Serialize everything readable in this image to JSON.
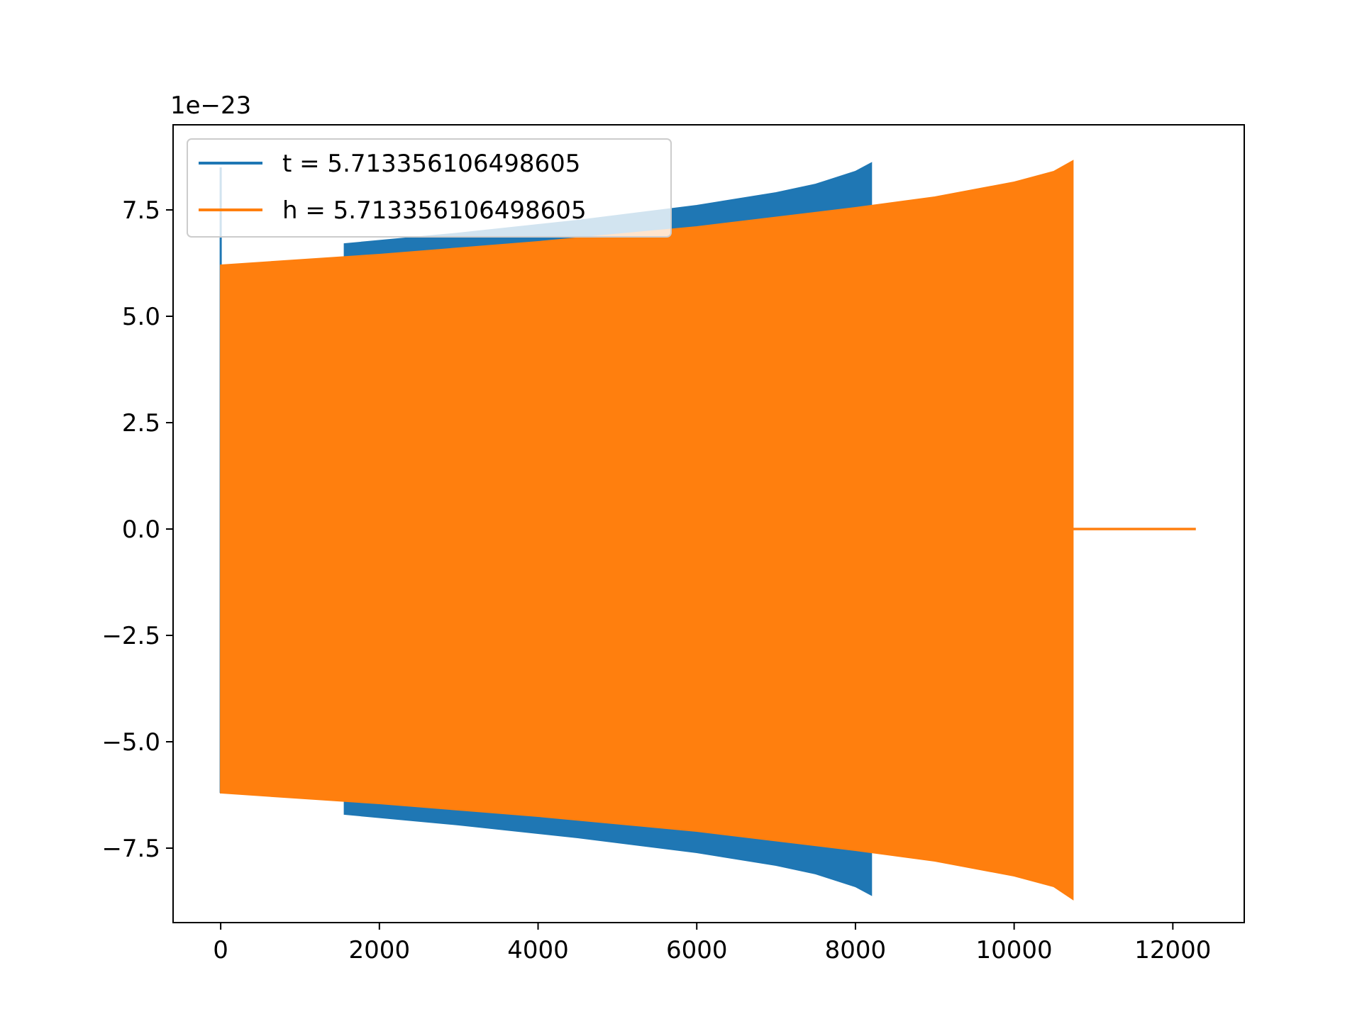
{
  "chart_data": {
    "type": "line",
    "title": "",
    "xlabel": "",
    "ylabel": "",
    "y_offset_label": "1e−23",
    "y_scale": 1e-23,
    "xlim": [
      -600,
      12900
    ],
    "ylim": [
      -9.25e-23,
      9.5e-23
    ],
    "xticks": [
      0,
      2000,
      4000,
      6000,
      8000,
      10000,
      12000
    ],
    "xtick_labels": [
      "0",
      "2000",
      "4000",
      "6000",
      "8000",
      "10000",
      "12000"
    ],
    "yticks": [
      -7.5e-23,
      -5e-23,
      -2.5e-23,
      0.0,
      2.5e-23,
      5e-23,
      7.5e-23
    ],
    "ytick_labels": [
      "−7.5",
      "−5.0",
      "−2.5",
      "0.0",
      "2.5",
      "5.0",
      "7.5"
    ],
    "grid": false,
    "legend_position": "upper-left",
    "series": [
      {
        "name": "t = 5.713356106498605",
        "color": "#1f77b4",
        "envelope": {
          "x": [
            0,
            1560,
            1560,
            3000,
            4500,
            6000,
            7000,
            7500,
            8000,
            8200
          ],
          "upper": [
            6.2e-23,
            6.2e-23,
            6.7e-23,
            6.95e-23,
            7.25e-23,
            7.6e-23,
            7.9e-23,
            8.1e-23,
            8.4e-23,
            8.6e-23
          ],
          "lower": [
            -6.2e-23,
            -6.2e-23,
            -6.7e-23,
            -6.95e-23,
            -7.25e-23,
            -7.6e-23,
            -7.9e-23,
            -8.1e-23,
            -8.4e-23,
            -8.6e-23
          ]
        },
        "spike": {
          "x": 0,
          "max": 8.5e-23,
          "min": -6.2e-23
        }
      },
      {
        "name": "h = 5.713356106498605",
        "color": "#ff7f0e",
        "envelope": {
          "x": [
            0,
            2000,
            4000,
            6000,
            8000,
            9000,
            10000,
            10500,
            10740
          ],
          "upper": [
            6.2e-23,
            6.45e-23,
            6.75e-23,
            7.1e-23,
            7.55e-23,
            7.8e-23,
            8.15e-23,
            8.4e-23,
            8.65e-23
          ],
          "lower": [
            -6.2e-23,
            -6.45e-23,
            -6.75e-23,
            -7.1e-23,
            -7.55e-23,
            -7.8e-23,
            -8.15e-23,
            -8.4e-23,
            -8.7e-23
          ]
        },
        "tail": {
          "x": [
            10740,
            12290
          ],
          "y": [
            0.0,
            0.0
          ]
        }
      }
    ]
  }
}
